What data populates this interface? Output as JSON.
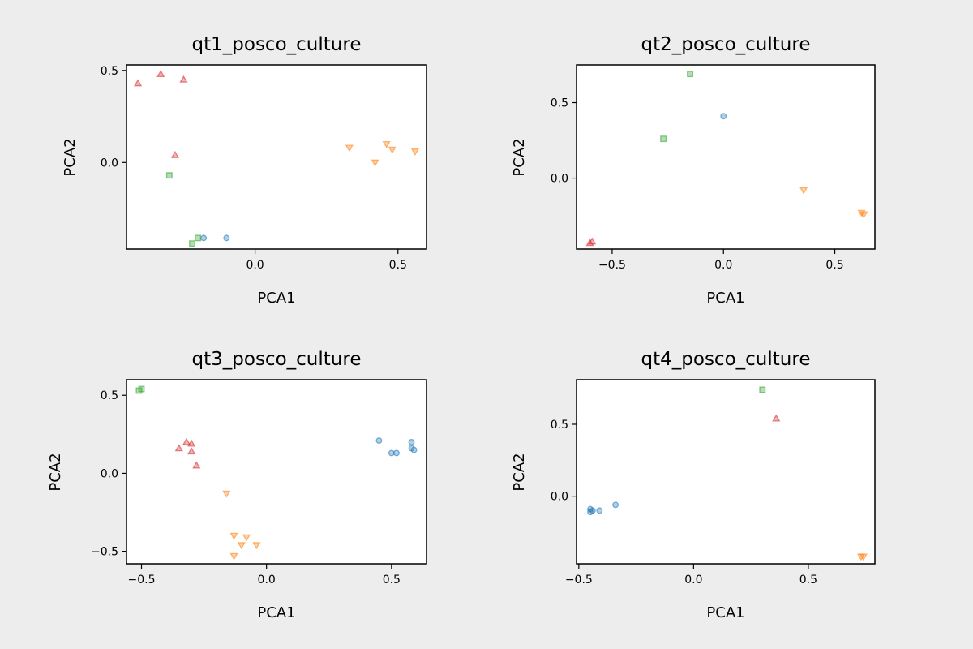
{
  "chart_data": [
    {
      "type": "scatter",
      "title": "qt1_posco_culture",
      "xlabel": "PCA1",
      "ylabel": "PCA2",
      "xlim": [
        -0.45,
        0.6
      ],
      "ylim": [
        -0.47,
        0.53
      ],
      "xticks": [
        0.0,
        0.5
      ],
      "xtick_labels": [
        "0.0",
        "0.5"
      ],
      "yticks": [
        0.0,
        0.5
      ],
      "ytick_labels": [
        "0.0",
        "0.5"
      ],
      "series": [
        {
          "color": "#1f77b4",
          "marker": "circle",
          "points": [
            [
              -0.18,
              -0.41
            ],
            [
              -0.1,
              -0.41
            ]
          ]
        },
        {
          "color": "#ff7f0e",
          "marker": "triangle-down",
          "points": [
            [
              0.33,
              0.08
            ],
            [
              0.42,
              0.0
            ],
            [
              0.46,
              0.1
            ],
            [
              0.48,
              0.07
            ],
            [
              0.56,
              0.06
            ]
          ]
        },
        {
          "color": "#2ca02c",
          "marker": "square",
          "points": [
            [
              -0.3,
              -0.07
            ],
            [
              -0.2,
              -0.41
            ],
            [
              -0.22,
              -0.44
            ]
          ]
        },
        {
          "color": "#d62728",
          "marker": "triangle-up",
          "points": [
            [
              -0.41,
              0.43
            ],
            [
              -0.33,
              0.48
            ],
            [
              -0.25,
              0.45
            ],
            [
              -0.28,
              0.04
            ]
          ]
        }
      ]
    },
    {
      "type": "scatter",
      "title": "qt2_posco_culture",
      "xlabel": "PCA1",
      "ylabel": "PCA2",
      "xlim": [
        -0.66,
        0.68
      ],
      "ylim": [
        -0.47,
        0.75
      ],
      "xticks": [
        -0.5,
        0.0,
        0.5
      ],
      "xtick_labels": [
        "−0.5",
        "0.0",
        "0.5"
      ],
      "yticks": [
        0.0,
        0.5
      ],
      "ytick_labels": [
        "0.0",
        "0.5"
      ],
      "series": [
        {
          "color": "#1f77b4",
          "marker": "circle",
          "points": [
            [
              0.0,
              0.41
            ]
          ]
        },
        {
          "color": "#ff7f0e",
          "marker": "triangle-down",
          "points": [
            [
              0.36,
              -0.08
            ],
            [
              0.62,
              -0.23
            ],
            [
              0.63,
              -0.24
            ]
          ]
        },
        {
          "color": "#2ca02c",
          "marker": "square",
          "points": [
            [
              -0.15,
              0.69
            ],
            [
              -0.27,
              0.26
            ]
          ]
        },
        {
          "color": "#d62728",
          "marker": "triangle-up",
          "points": [
            [
              -0.59,
              -0.42
            ],
            [
              -0.6,
              -0.43
            ]
          ]
        }
      ]
    },
    {
      "type": "scatter",
      "title": "qt3_posco_culture",
      "xlabel": "PCA1",
      "ylabel": "PCA2",
      "xlim": [
        -0.56,
        0.64
      ],
      "ylim": [
        -0.58,
        0.6
      ],
      "xticks": [
        -0.5,
        0.0,
        0.5
      ],
      "xtick_labels": [
        "−0.5",
        "0.0",
        "0.5"
      ],
      "yticks": [
        -0.5,
        0.0,
        0.5
      ],
      "ytick_labels": [
        "−0.5",
        "0.0",
        "0.5"
      ],
      "series": [
        {
          "color": "#1f77b4",
          "marker": "circle",
          "points": [
            [
              0.45,
              0.21
            ],
            [
              0.5,
              0.13
            ],
            [
              0.52,
              0.13
            ],
            [
              0.58,
              0.2
            ],
            [
              0.58,
              0.16
            ],
            [
              0.59,
              0.15
            ]
          ]
        },
        {
          "color": "#ff7f0e",
          "marker": "triangle-down",
          "points": [
            [
              -0.16,
              -0.13
            ],
            [
              -0.13,
              -0.4
            ],
            [
              -0.1,
              -0.46
            ],
            [
              -0.08,
              -0.41
            ],
            [
              -0.04,
              -0.46
            ],
            [
              -0.13,
              -0.53
            ]
          ]
        },
        {
          "color": "#2ca02c",
          "marker": "square",
          "points": [
            [
              -0.5,
              0.54
            ],
            [
              -0.51,
              0.53
            ]
          ]
        },
        {
          "color": "#d62728",
          "marker": "triangle-up",
          "points": [
            [
              -0.32,
              0.2
            ],
            [
              -0.3,
              0.19
            ],
            [
              -0.35,
              0.16
            ],
            [
              -0.3,
              0.14
            ],
            [
              -0.28,
              0.05
            ]
          ]
        }
      ]
    },
    {
      "type": "scatter",
      "title": "qt4_posco_culture",
      "xlabel": "PCA1",
      "ylabel": "PCA2",
      "xlim": [
        -0.51,
        0.79
      ],
      "ylim": [
        -0.47,
        0.81
      ],
      "xticks": [
        -0.5,
        0.0,
        0.5
      ],
      "xtick_labels": [
        "−0.5",
        "0.0",
        "0.5"
      ],
      "yticks": [
        0.0,
        0.5
      ],
      "ytick_labels": [
        "0.0",
        "0.5"
      ],
      "series": [
        {
          "color": "#1f77b4",
          "marker": "circle",
          "points": [
            [
              -0.45,
              -0.09
            ],
            [
              -0.45,
              -0.11
            ],
            [
              -0.44,
              -0.1
            ],
            [
              -0.41,
              -0.1
            ],
            [
              -0.34,
              -0.06
            ]
          ]
        },
        {
          "color": "#ff7f0e",
          "marker": "triangle-down",
          "points": [
            [
              0.73,
              -0.42
            ],
            [
              0.74,
              -0.42
            ]
          ]
        },
        {
          "color": "#2ca02c",
          "marker": "square",
          "points": [
            [
              0.3,
              0.74
            ]
          ]
        },
        {
          "color": "#d62728",
          "marker": "triangle-up",
          "points": [
            [
              0.36,
              0.54
            ]
          ]
        }
      ]
    }
  ]
}
